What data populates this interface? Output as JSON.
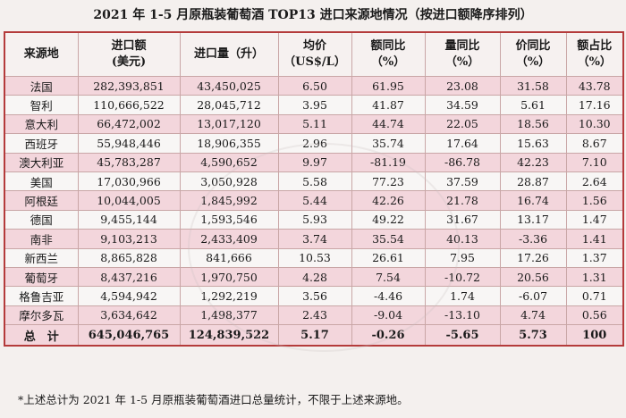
{
  "title": "2021 年 1-5 月原瓶装葡萄酒 TOP13 进口来源地情况（按进口额降序排列）",
  "headers": [
    [
      "来源地"
    ],
    [
      "进口额",
      "(美元)"
    ],
    [
      "进口量（升）"
    ],
    [
      "均价",
      "（US$/L）"
    ],
    [
      "额同比",
      "（%）"
    ],
    [
      "量同比",
      "（%）"
    ],
    [
      "价同比",
      "（%）"
    ],
    [
      "额占比",
      "（%）"
    ]
  ],
  "rows": [
    [
      "法国",
      "282,393,851",
      "43,450,025",
      "6.50",
      "61.95",
      "23.08",
      "31.58",
      "43.78"
    ],
    [
      "智利",
      "110,666,522",
      "28,045,712",
      "3.95",
      "41.87",
      "34.59",
      "5.61",
      "17.16"
    ],
    [
      "意大利",
      "66,472,002",
      "13,017,120",
      "5.11",
      "44.74",
      "22.05",
      "18.56",
      "10.30"
    ],
    [
      "西班牙",
      "55,948,446",
      "18,906,355",
      "2.96",
      "35.74",
      "17.64",
      "15.63",
      "8.67"
    ],
    [
      "澳大利亚",
      "45,783,287",
      "4,590,652",
      "9.97",
      "-81.19",
      "-86.78",
      "42.23",
      "7.10"
    ],
    [
      "美国",
      "17,030,966",
      "3,050,928",
      "5.58",
      "77.23",
      "37.59",
      "28.87",
      "2.64"
    ],
    [
      "阿根廷",
      "10,044,005",
      "1,845,992",
      "5.44",
      "42.26",
      "21.78",
      "16.74",
      "1.56"
    ],
    [
      "德国",
      "9,455,144",
      "1,593,546",
      "5.93",
      "49.22",
      "31.67",
      "13.17",
      "1.47"
    ],
    [
      "南非",
      "9,103,213",
      "2,433,409",
      "3.74",
      "35.54",
      "40.13",
      "-3.36",
      "1.41"
    ],
    [
      "新西兰",
      "8,865,828",
      "841,666",
      "10.53",
      "26.61",
      "7.95",
      "17.26",
      "1.37"
    ],
    [
      "葡萄牙",
      "8,437,216",
      "1,970,750",
      "4.28",
      "7.54",
      "-10.72",
      "20.56",
      "1.31"
    ],
    [
      "格鲁吉亚",
      "4,594,942",
      "1,292,219",
      "3.56",
      "-4.46",
      "1.74",
      "-6.07",
      "0.71"
    ],
    [
      "摩尔多瓦",
      "3,634,642",
      "1,498,377",
      "2.43",
      "-9.04",
      "-13.10",
      "4.74",
      "0.56"
    ]
  ],
  "total": [
    "总　计",
    "645,046,765",
    "124,839,522",
    "5.17",
    "-0.26",
    "-5.65",
    "5.73",
    "100"
  ],
  "footnote": "*上述总计为 2021 年 1-5 月原瓶装葡萄酒进口总量统计，不限于上述来源地。",
  "colors": {
    "border": "#b43b3b",
    "pink_row": "#f3d6dc",
    "white_row": "#f8f6f5"
  }
}
